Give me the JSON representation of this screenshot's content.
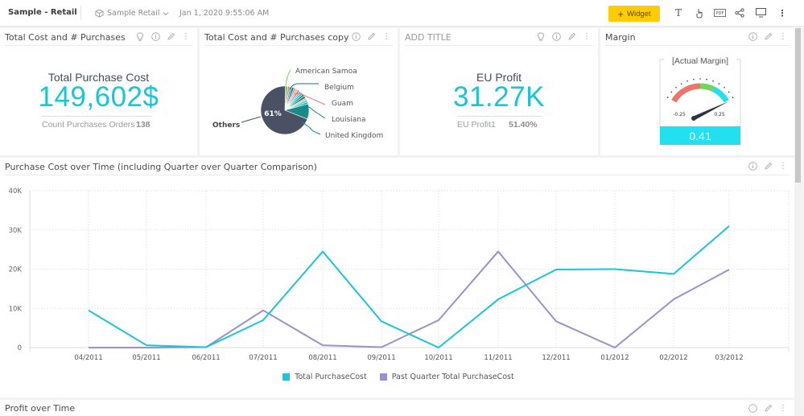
{
  "topbar": {
    "title": "Sample - Retail",
    "datasource": "Sample Retail",
    "timestamp": "Jan 1, 2020 9:55:06 AM",
    "widget_button": "Widget",
    "icons": [
      "text-icon",
      "touch-icon",
      "pdf-icon",
      "share-icon",
      "monitor-icon",
      "more-icon"
    ]
  },
  "panels": {
    "kpi1": {
      "title": "Total Cost and # Purchases",
      "label": "Total Purchase Cost",
      "value": "149,602$",
      "sub_label": "Count Purchases Orders",
      "sub_value": "138"
    },
    "pie": {
      "title": "Total Cost and # Purchases copy"
    },
    "kpi2": {
      "title": "ADD TITLE",
      "label": "EU Profit",
      "value": "31.27K",
      "sub_label": "EU Profit1",
      "sub_value": "51.40%"
    },
    "gauge": {
      "title": "Margin",
      "label": "[Actual Margin]",
      "min_label": "-0.25",
      "max_label": "0.25",
      "value": "0.41",
      "value_num": 0.41,
      "bands": [
        {
          "color": "#f2736b"
        },
        {
          "color": "#6fd65a"
        },
        {
          "color": "#22e0f0"
        }
      ]
    },
    "line": {
      "title": "Purchase Cost over Time (including Quarter over Quarter Comparison)"
    },
    "profit": {
      "title": "Profit over Time"
    }
  },
  "chart_data": [
    {
      "type": "pie",
      "title": "Total Cost and # Purchases copy",
      "labels": [
        "Others",
        "American Samoa",
        "Belgium",
        "Guam",
        "Louisiana",
        "United Kingdom"
      ],
      "data_label": "61%",
      "slices": [
        {
          "name": "Others",
          "percent": 61,
          "color": "#4a5165"
        },
        {
          "name": "American Samoa",
          "percent": 1.5,
          "color": "#6fd65a"
        },
        {
          "name": "s2",
          "percent": 1.2,
          "color": "#f2736b"
        },
        {
          "name": "s3",
          "percent": 1.2,
          "color": "#1ab8c8"
        },
        {
          "name": "Belgium",
          "percent": 1.3,
          "color": "#2a6a78"
        },
        {
          "name": "s5",
          "percent": 1.2,
          "color": "#9c9be8"
        },
        {
          "name": "s6",
          "percent": 1.3,
          "color": "#ffb36b"
        },
        {
          "name": "Guam",
          "percent": 1.3,
          "color": "#f2736b"
        },
        {
          "name": "s8",
          "percent": 1.2,
          "color": "#22e0f0"
        },
        {
          "name": "s9",
          "percent": 1.2,
          "color": "#1ab8c8"
        },
        {
          "name": "s10",
          "percent": 1.4,
          "color": "#2a8a8a"
        },
        {
          "name": "Louisiana",
          "percent": 1.5,
          "color": "#1a7f88"
        },
        {
          "name": "s12",
          "percent": 1.2,
          "color": "#ffb36b"
        },
        {
          "name": "s13",
          "percent": 1.3,
          "color": "#22e0f0"
        },
        {
          "name": "s14",
          "percent": 1.2,
          "color": "#1ab8c8"
        },
        {
          "name": "United Kingdom",
          "percent": 9,
          "color": "#1a8a88"
        }
      ]
    },
    {
      "type": "line",
      "title": "Purchase Cost over Time (including Quarter over Quarter Comparison)",
      "xlabel": "",
      "ylabel": "",
      "categories": [
        "04/2011",
        "05/2011",
        "06/2011",
        "07/2011",
        "08/2011",
        "09/2011",
        "10/2011",
        "11/2011",
        "12/2011",
        "01/2012",
        "02/2012",
        "03/2012"
      ],
      "yticks": [
        "0",
        "10K",
        "20K",
        "30K",
        "40K"
      ],
      "ylim": [
        0,
        40000
      ],
      "grid": true,
      "legend": "bottom",
      "series": [
        {
          "name": "Total PurchaseCost",
          "color": "#19c5d6",
          "values": [
            9500,
            600,
            100,
            7000,
            24500,
            6700,
            0,
            12300,
            19900,
            20000,
            18800,
            31000
          ]
        },
        {
          "name": "Past Quarter Total PurchaseCost",
          "color": "#9792cc",
          "values": [
            0,
            0,
            100,
            9500,
            600,
            100,
            7000,
            24500,
            6700,
            0,
            12300,
            19900
          ]
        }
      ]
    }
  ]
}
